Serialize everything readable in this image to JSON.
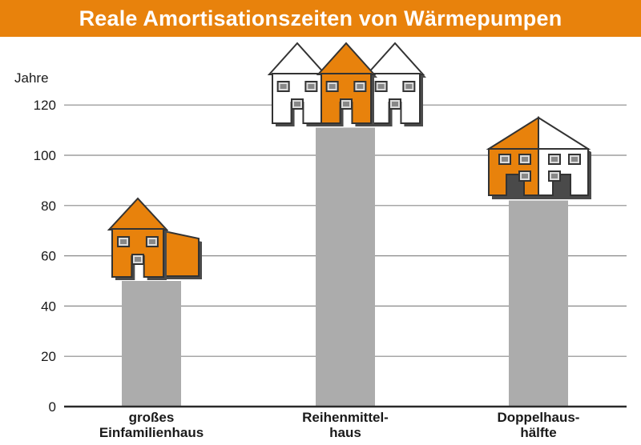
{
  "title": "Reale Amortisationszeiten von Wärmepumpen",
  "colors": {
    "accent": "#e8820c",
    "bar": "#acacac",
    "grid": "#8a8a8a",
    "title_text": "#ffffff"
  },
  "chart_data": {
    "type": "bar",
    "title": "Reale Amortisationszeiten von Wärmepumpen",
    "ylabel": "Jahre",
    "xlabel": "",
    "ylim": [
      0,
      120
    ],
    "yticks": [
      0,
      20,
      40,
      60,
      80,
      100,
      120
    ],
    "grid": true,
    "categories": [
      {
        "lines": [
          "großes",
          "Einfamilienhaus"
        ],
        "icon": "single-family-house-icon"
      },
      {
        "lines": [
          "Reihenmittel-",
          "haus"
        ],
        "icon": "row-houses-icon"
      },
      {
        "lines": [
          "Doppelhaus-",
          "hälfte"
        ],
        "icon": "semi-detached-house-icon"
      }
    ],
    "values": [
      50,
      111,
      82
    ]
  }
}
